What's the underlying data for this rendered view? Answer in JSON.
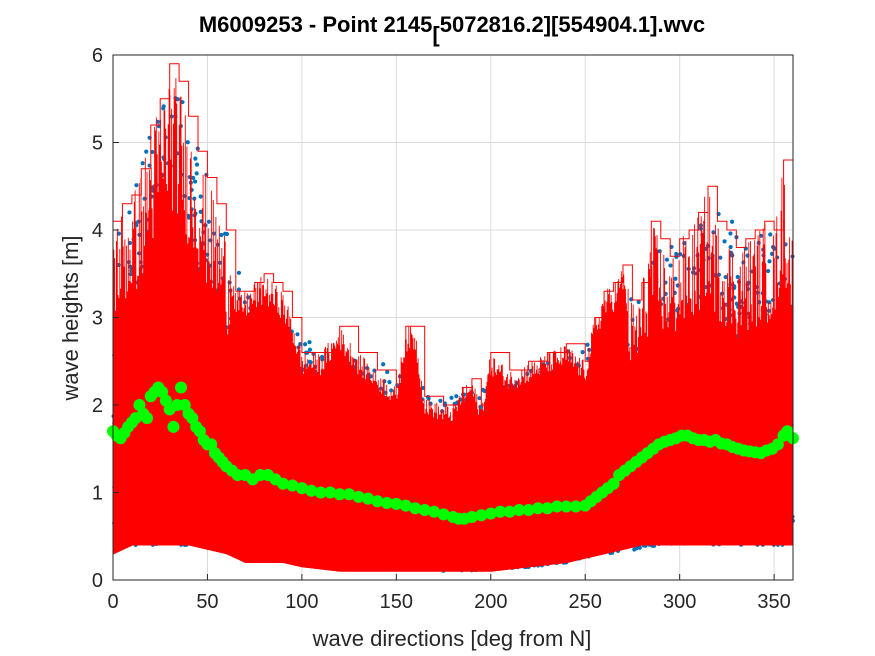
{
  "chart_data": {
    "type": "scatter",
    "title_main": "M6009253 - Point 2145",
    "title_bracket": "[",
    "title_tail": "5072816.2][554904.1].wvc",
    "xlabel": "wave directions [deg from N]",
    "ylabel": "wave heights [m]",
    "xlim": [
      0,
      360
    ],
    "ylim": [
      0,
      6
    ],
    "x_ticks": [
      0,
      50,
      100,
      150,
      200,
      250,
      300,
      350
    ],
    "y_ticks": [
      0,
      1,
      2,
      3,
      4,
      5,
      6
    ],
    "x_tick_labels": [
      "0",
      "50",
      "100",
      "150",
      "200",
      "250",
      "300",
      "350"
    ],
    "y_tick_labels": [
      "0",
      "1",
      "2",
      "3",
      "4",
      "5",
      "6"
    ],
    "grid": true,
    "series": [
      {
        "role": "scatter-points",
        "color": "#0072BD",
        "envelope_max": [
          [
            0,
            4.2
          ],
          [
            10,
            4.3
          ],
          [
            20,
            5.2
          ],
          [
            30,
            5.8
          ],
          [
            40,
            5.5
          ],
          [
            50,
            4.6
          ],
          [
            60,
            4.0
          ],
          [
            70,
            3.3
          ],
          [
            80,
            3.1
          ],
          [
            90,
            2.9
          ],
          [
            100,
            2.8
          ],
          [
            120,
            2.6
          ],
          [
            140,
            2.5
          ],
          [
            160,
            2.3
          ],
          [
            180,
            2.1
          ],
          [
            200,
            2.2
          ],
          [
            220,
            2.4
          ],
          [
            240,
            2.6
          ],
          [
            260,
            2.9
          ],
          [
            270,
            3.1
          ],
          [
            280,
            3.4
          ],
          [
            290,
            3.8
          ],
          [
            300,
            3.9
          ],
          [
            320,
            4.2
          ],
          [
            340,
            4.0
          ],
          [
            360,
            4.0
          ]
        ],
        "envelope_min": [
          [
            0,
            0.4
          ],
          [
            20,
            0.4
          ],
          [
            40,
            0.4
          ],
          [
            60,
            0.35
          ],
          [
            80,
            0.3
          ],
          [
            100,
            0.25
          ],
          [
            120,
            0.2
          ],
          [
            140,
            0.15
          ],
          [
            160,
            0.12
          ],
          [
            180,
            0.1
          ],
          [
            200,
            0.12
          ],
          [
            220,
            0.15
          ],
          [
            240,
            0.2
          ],
          [
            260,
            0.3
          ],
          [
            280,
            0.35
          ],
          [
            300,
            0.4
          ],
          [
            320,
            0.4
          ],
          [
            340,
            0.4
          ],
          [
            360,
            0.4
          ]
        ]
      },
      {
        "role": "max-per-direction-stairs",
        "color": "#FF0000",
        "upper": [
          [
            0,
            4.1
          ],
          [
            5,
            4.3
          ],
          [
            10,
            4.4
          ],
          [
            15,
            4.7
          ],
          [
            20,
            5.2
          ],
          [
            25,
            5.5
          ],
          [
            30,
            5.9
          ],
          [
            35,
            5.7
          ],
          [
            40,
            5.3
          ],
          [
            45,
            4.9
          ],
          [
            50,
            4.6
          ],
          [
            55,
            4.3
          ],
          [
            60,
            4.0
          ],
          [
            65,
            3.3
          ],
          [
            70,
            3.3
          ],
          [
            75,
            3.4
          ],
          [
            80,
            3.5
          ],
          [
            85,
            3.4
          ],
          [
            90,
            3.3
          ],
          [
            95,
            3.0
          ],
          [
            100,
            2.6
          ],
          [
            110,
            2.6
          ],
          [
            120,
            2.9
          ],
          [
            130,
            2.6
          ],
          [
            140,
            2.4
          ],
          [
            150,
            2.2
          ],
          [
            155,
            2.9
          ],
          [
            160,
            2.9
          ],
          [
            165,
            2.1
          ],
          [
            175,
            2.0
          ],
          [
            180,
            2.0
          ],
          [
            185,
            2.2
          ],
          [
            190,
            2.3
          ],
          [
            195,
            2.0
          ],
          [
            200,
            2.6
          ],
          [
            210,
            2.4
          ],
          [
            220,
            2.5
          ],
          [
            230,
            2.6
          ],
          [
            240,
            2.7
          ],
          [
            250,
            2.5
          ],
          [
            255,
            3.0
          ],
          [
            260,
            3.3
          ],
          [
            265,
            3.4
          ],
          [
            270,
            3.6
          ],
          [
            275,
            3.2
          ],
          [
            280,
            3.4
          ],
          [
            285,
            4.1
          ],
          [
            290,
            3.9
          ],
          [
            295,
            3.7
          ],
          [
            300,
            3.9
          ],
          [
            305,
            4.0
          ],
          [
            310,
            4.2
          ],
          [
            315,
            4.5
          ],
          [
            320,
            4.1
          ],
          [
            325,
            4.0
          ],
          [
            330,
            3.8
          ],
          [
            335,
            3.9
          ],
          [
            340,
            4.0
          ],
          [
            345,
            4.1
          ],
          [
            350,
            4.0
          ],
          [
            355,
            4.8
          ],
          [
            360,
            4.0
          ]
        ],
        "lower": [
          [
            0,
            0.3
          ],
          [
            10,
            0.4
          ],
          [
            20,
            0.4
          ],
          [
            30,
            0.4
          ],
          [
            40,
            0.4
          ],
          [
            50,
            0.35
          ],
          [
            60,
            0.3
          ],
          [
            70,
            0.2
          ],
          [
            80,
            0.2
          ],
          [
            90,
            0.2
          ],
          [
            100,
            0.15
          ],
          [
            120,
            0.1
          ],
          [
            140,
            0.1
          ],
          [
            160,
            0.1
          ],
          [
            180,
            0.1
          ],
          [
            200,
            0.1
          ],
          [
            220,
            0.15
          ],
          [
            240,
            0.2
          ],
          [
            260,
            0.3
          ],
          [
            280,
            0.4
          ],
          [
            300,
            0.4
          ],
          [
            320,
            0.4
          ],
          [
            340,
            0.4
          ],
          [
            360,
            0.4
          ]
        ]
      },
      {
        "role": "mean-per-direction",
        "color": "#00FF00",
        "points": [
          [
            0,
            1.7
          ],
          [
            2,
            1.65
          ],
          [
            4,
            1.62
          ],
          [
            6,
            1.68
          ],
          [
            8,
            1.75
          ],
          [
            10,
            1.8
          ],
          [
            12,
            1.85
          ],
          [
            14,
            2.0
          ],
          [
            16,
            1.9
          ],
          [
            18,
            1.85
          ],
          [
            20,
            2.1
          ],
          [
            22,
            2.15
          ],
          [
            24,
            2.2
          ],
          [
            26,
            2.15
          ],
          [
            28,
            2.05
          ],
          [
            30,
            1.95
          ],
          [
            32,
            1.75
          ],
          [
            34,
            2.0
          ],
          [
            36,
            2.2
          ],
          [
            38,
            2.0
          ],
          [
            40,
            1.9
          ],
          [
            42,
            1.85
          ],
          [
            44,
            1.75
          ],
          [
            46,
            1.7
          ],
          [
            48,
            1.6
          ],
          [
            50,
            1.55
          ],
          [
            52,
            1.55
          ],
          [
            54,
            1.45
          ],
          [
            56,
            1.4
          ],
          [
            58,
            1.35
          ],
          [
            60,
            1.3
          ],
          [
            63,
            1.25
          ],
          [
            66,
            1.2
          ],
          [
            70,
            1.2
          ],
          [
            74,
            1.15
          ],
          [
            78,
            1.2
          ],
          [
            82,
            1.2
          ],
          [
            86,
            1.15
          ],
          [
            90,
            1.1
          ],
          [
            95,
            1.08
          ],
          [
            100,
            1.05
          ],
          [
            105,
            1.02
          ],
          [
            110,
            1.0
          ],
          [
            115,
            1.0
          ],
          [
            120,
            0.98
          ],
          [
            125,
            0.98
          ],
          [
            130,
            0.95
          ],
          [
            135,
            0.93
          ],
          [
            140,
            0.9
          ],
          [
            145,
            0.88
          ],
          [
            150,
            0.87
          ],
          [
            155,
            0.85
          ],
          [
            160,
            0.82
          ],
          [
            165,
            0.8
          ],
          [
            170,
            0.78
          ],
          [
            175,
            0.75
          ],
          [
            180,
            0.72
          ],
          [
            183,
            0.7
          ],
          [
            186,
            0.7
          ],
          [
            190,
            0.72
          ],
          [
            195,
            0.74
          ],
          [
            200,
            0.76
          ],
          [
            205,
            0.78
          ],
          [
            210,
            0.78
          ],
          [
            215,
            0.8
          ],
          [
            220,
            0.8
          ],
          [
            225,
            0.82
          ],
          [
            230,
            0.82
          ],
          [
            235,
            0.84
          ],
          [
            240,
            0.84
          ],
          [
            245,
            0.84
          ],
          [
            250,
            0.85
          ],
          [
            253,
            0.9
          ],
          [
            256,
            0.95
          ],
          [
            259,
            1.0
          ],
          [
            262,
            1.05
          ],
          [
            265,
            1.1
          ],
          [
            268,
            1.2
          ],
          [
            271,
            1.25
          ],
          [
            274,
            1.3
          ],
          [
            277,
            1.35
          ],
          [
            280,
            1.4
          ],
          [
            283,
            1.45
          ],
          [
            286,
            1.5
          ],
          [
            289,
            1.55
          ],
          [
            292,
            1.58
          ],
          [
            295,
            1.6
          ],
          [
            298,
            1.62
          ],
          [
            301,
            1.65
          ],
          [
            304,
            1.65
          ],
          [
            307,
            1.62
          ],
          [
            310,
            1.6
          ],
          [
            313,
            1.6
          ],
          [
            316,
            1.58
          ],
          [
            319,
            1.6
          ],
          [
            322,
            1.56
          ],
          [
            325,
            1.55
          ],
          [
            328,
            1.52
          ],
          [
            331,
            1.5
          ],
          [
            334,
            1.48
          ],
          [
            337,
            1.47
          ],
          [
            340,
            1.46
          ],
          [
            343,
            1.45
          ],
          [
            346,
            1.48
          ],
          [
            349,
            1.5
          ],
          [
            352,
            1.55
          ],
          [
            355,
            1.65
          ],
          [
            357,
            1.7
          ],
          [
            360,
            1.62
          ]
        ]
      }
    ]
  }
}
